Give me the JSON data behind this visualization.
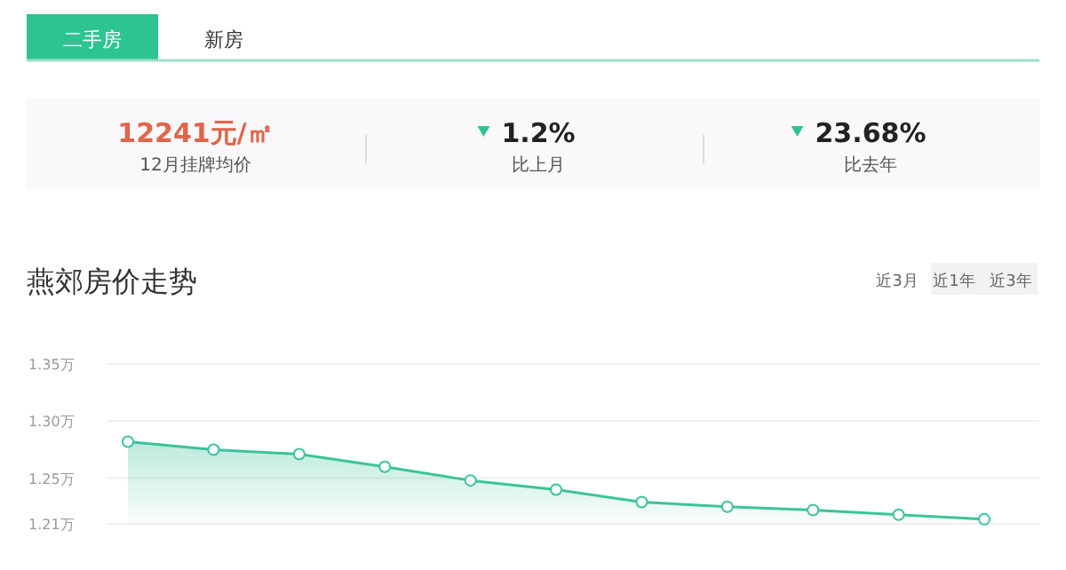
{
  "chart_data": [
    {
      "type": "other",
      "annotations": [
        "二手房",
        "新房",
        "12241元/㎡",
        "12月挂牌均价",
        "1.2%",
        "比上月",
        "23.68%",
        "比去年"
      ]
    },
    {
      "type": "area",
      "title": "燕郊房价走势",
      "annotations": [
        "近3月",
        "近1年",
        "近3年"
      ],
      "categories": [
        null,
        null,
        null,
        null,
        null,
        null,
        null,
        null,
        null,
        null,
        null
      ],
      "series": [
        {
          "color": "#3cc39a",
          "values": [
            1.282,
            1.275,
            1.271,
            1.26,
            1.248,
            1.24,
            1.229,
            1.225,
            1.222,
            1.218,
            1.214
          ]
        }
      ],
      "ylim": [
        1.21,
        1.35
      ],
      "yticks": [
        {
          "value": 1.35,
          "label": "1.35万"
        },
        {
          "value": 1.3,
          "label": "1.30万"
        },
        {
          "value": 1.25,
          "label": "1.25万"
        },
        {
          "value": 1.21,
          "label": "1.21万"
        }
      ],
      "grid": "y",
      "marker": "circle"
    }
  ]
}
